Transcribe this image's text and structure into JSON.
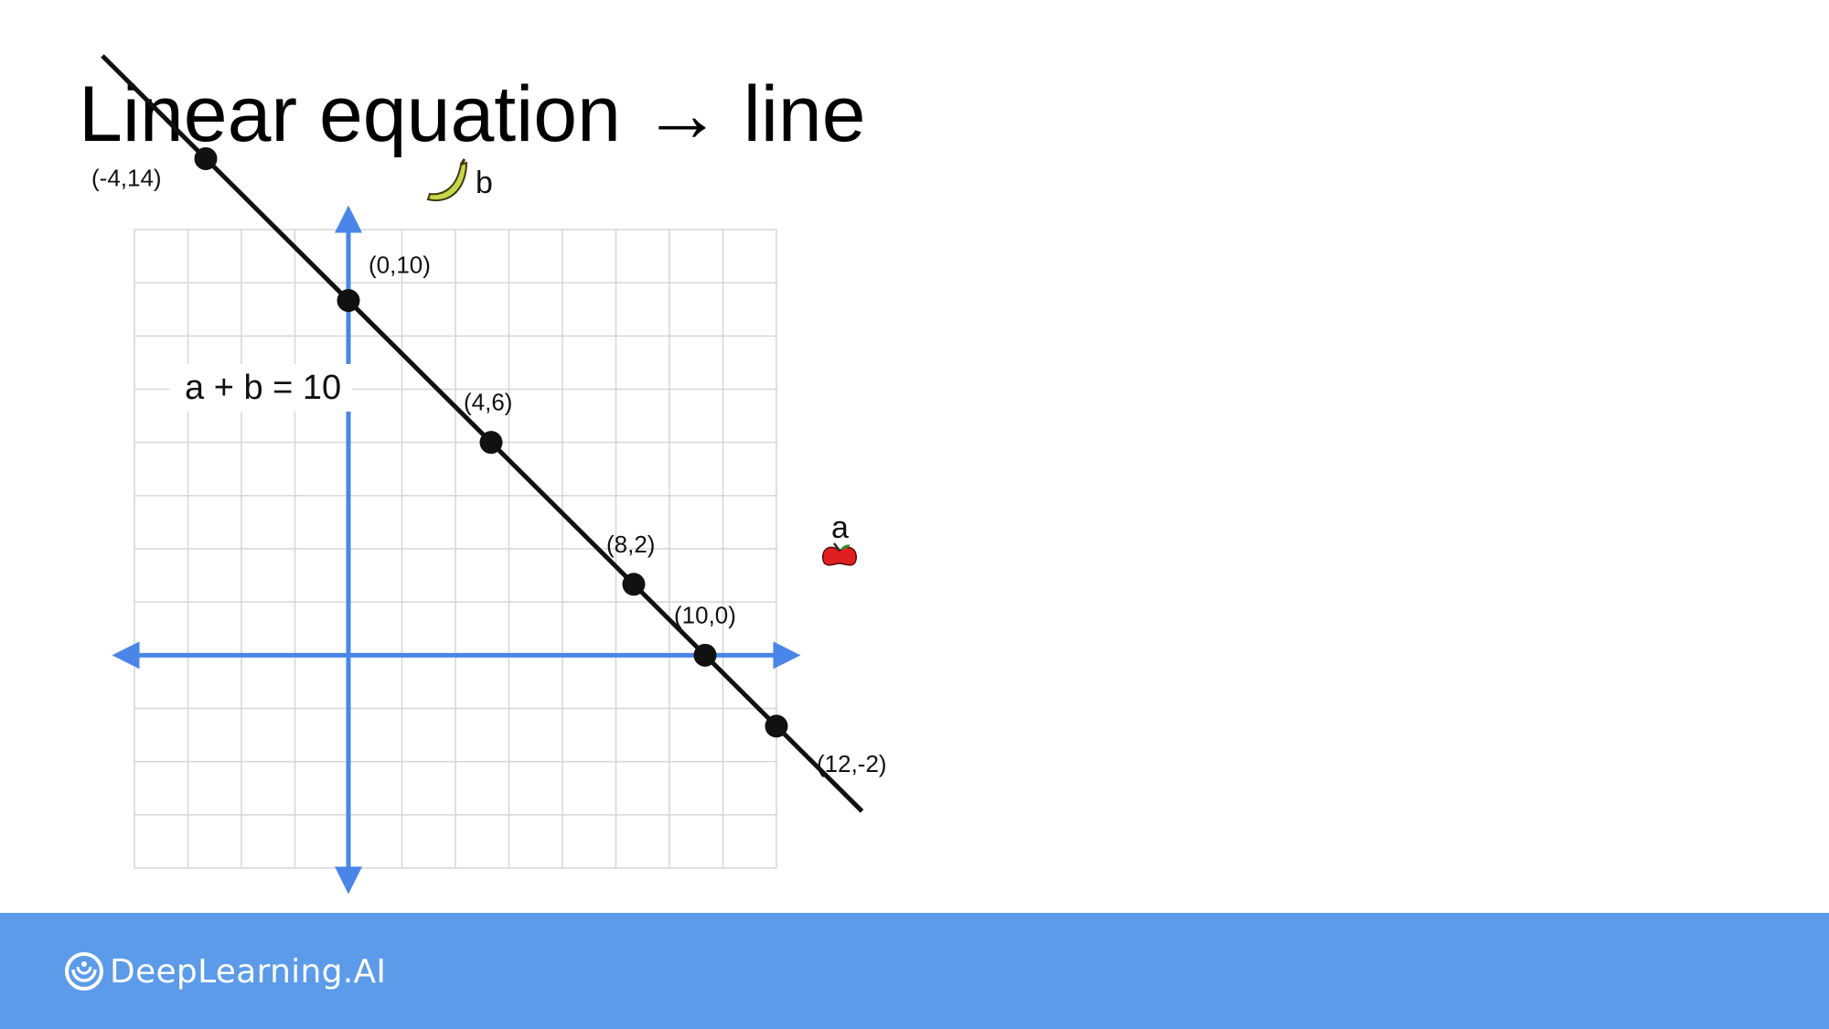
{
  "slide": {
    "title": "Linear equation → line"
  },
  "chart_data": {
    "type": "line",
    "equation": "a + b = 10",
    "xlabel": "a",
    "ylabel": "b",
    "xlim": [
      -6,
      12
    ],
    "ylim": [
      -6,
      12
    ],
    "grid": true,
    "xlabel_icon": "apple-icon",
    "ylabel_icon": "banana-icon",
    "points": [
      {
        "x": -4,
        "y": 14,
        "label": "(-4,14)"
      },
      {
        "x": 0,
        "y": 10,
        "label": "(0,10)"
      },
      {
        "x": 4,
        "y": 6,
        "label": "(4,6)"
      },
      {
        "x": 8,
        "y": 2,
        "label": "(8,2)"
      },
      {
        "x": 10,
        "y": 0,
        "label": "(10,0)"
      },
      {
        "x": 12,
        "y": -2,
        "label": "(12,-2)"
      }
    ],
    "line_range": [
      -6.9,
      14.4
    ]
  },
  "colors": {
    "axis": "#4a86e8",
    "line": "#111111",
    "grid": "#d6d6d6",
    "footer": "#5b9be9",
    "apple": "#e02020",
    "banana": "#c8d64a"
  },
  "footer": {
    "brand_name": "DeepLearning.AI",
    "logo_icon": "deeplearning-logo-icon"
  }
}
